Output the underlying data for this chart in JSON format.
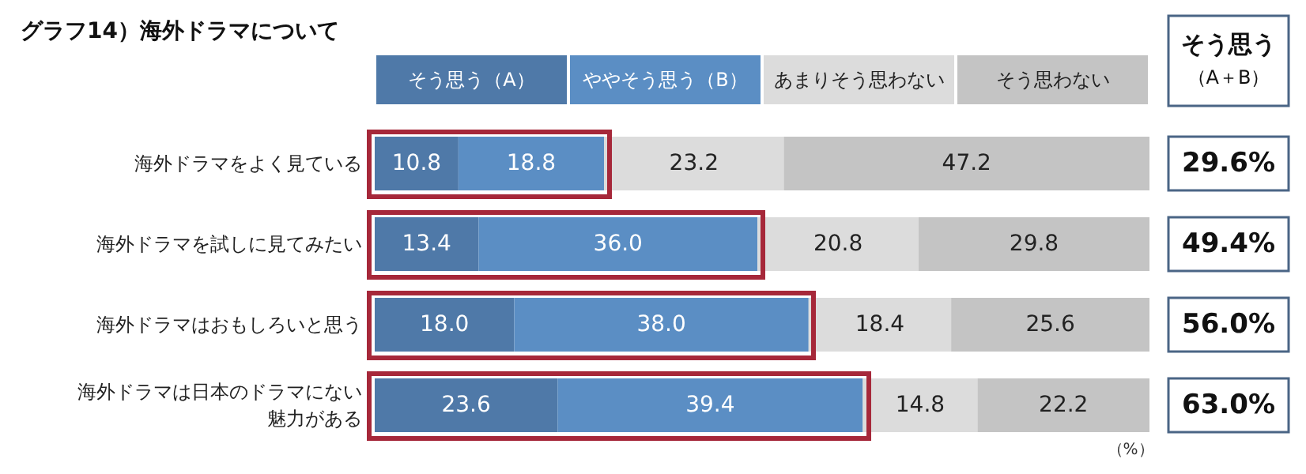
{
  "chart_data": {
    "type": "bar",
    "orientation": "horizontal",
    "stacked": true,
    "title": "グラフ14）海外ドラマについて",
    "categories": [
      "海外ドラマをよく見ている",
      "海外ドラマを試しに見てみたい",
      "海外ドラマはおもしろいと思う",
      "海外ドラマは日本のドラマにない魅力がある"
    ],
    "series": [
      {
        "name": "そう思う（A）",
        "color": "#4f79a8",
        "values": [
          10.8,
          13.4,
          18.0,
          23.6
        ],
        "value_labels": [
          "10.8",
          "13.4",
          "18.0",
          "23.6"
        ]
      },
      {
        "name": "ややそう思う（B）",
        "color": "#5b8ec4",
        "values": [
          18.8,
          36.0,
          38.0,
          39.4
        ],
        "value_labels": [
          "18.8",
          "36.0",
          "38.0",
          "39.4"
        ]
      },
      {
        "name": "あまりそう思わない",
        "color": "#dcdcdc",
        "values": [
          23.2,
          20.8,
          18.4,
          14.8
        ],
        "value_labels": [
          "23.2",
          "20.8",
          "18.4",
          "14.8"
        ]
      },
      {
        "name": "そう思わない",
        "color": "#c4c4c4",
        "values": [
          47.2,
          29.8,
          25.6,
          22.2
        ],
        "value_labels": [
          "47.2",
          "29.8",
          "25.6",
          "22.2"
        ]
      }
    ],
    "tick_labels": "y",
    "legend": "top",
    "annotations": [
      "そう思う",
      "（A＋B）",
      "29.6%",
      "49.4%",
      "56.0%",
      "63.0%",
      "（%）"
    ]
  }
}
